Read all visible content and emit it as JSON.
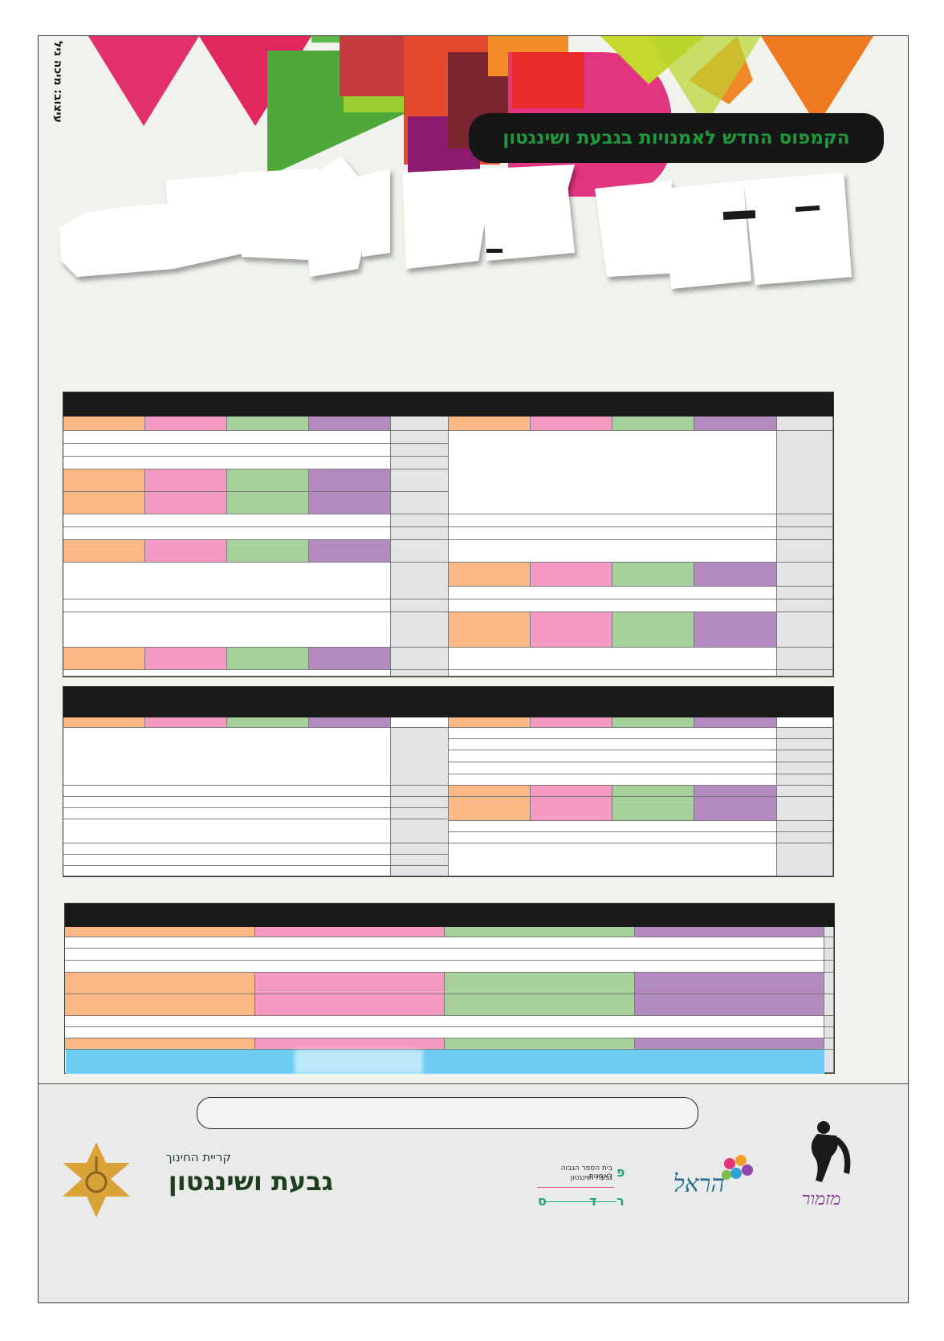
{
  "poster": {
    "kicker": "הקמפוס החדש לאמנויות בגבעת ושינגטון",
    "vertical_credit": "עיצוב: מיכה גיל",
    "colors": {
      "background": "#eff3ec",
      "orange": "#fbb885",
      "pink": "#f49ac3",
      "green": "#a6d19a",
      "purple": "#b38bc2",
      "gray": "#e3e4e6",
      "header": "#1a1a1a",
      "highlight": "#6dcdf2"
    }
  },
  "footer": {
    "logo_givat_kicker": "קריית החינוך",
    "logo_givat_name": "גבעת ושינגטון",
    "logo_school_line1": "בית הספר הגבוה לאמנות",
    "logo_school_line2": "גבעת ושינגטון",
    "logo_school_mark": [
      "פ",
      "ר",
      "ד",
      "ס"
    ],
    "logo_harel": "הראל",
    "logo_mizmor": "מזמור"
  }
}
